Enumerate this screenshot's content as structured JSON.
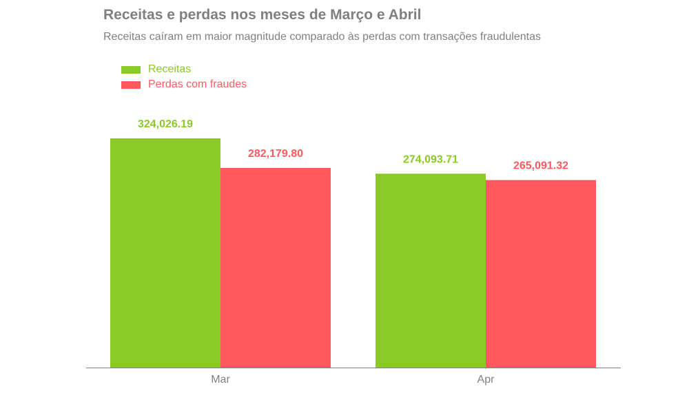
{
  "chart_data": {
    "type": "bar",
    "title": "Receitas e perdas nos meses de Março e Abril",
    "subtitle": "Receitas caíram em maior magnitude comparado às perdas com transações fraudulentas",
    "categories": [
      "Mar",
      "Apr"
    ],
    "series": [
      {
        "name": "Receitas",
        "color": "#8ac926",
        "values": [
          324026.19,
          274093.71
        ],
        "labels": [
          "324,026.19",
          "274,093.71"
        ]
      },
      {
        "name": "Perdas com fraudes",
        "color": "#ff595e",
        "values": [
          282179.8,
          265091.32
        ],
        "labels": [
          "282,179.80",
          "265,091.32"
        ]
      }
    ],
    "ylim": [
      0,
      350000
    ],
    "grid": false,
    "legend_position": "top-left",
    "axis_color": "#7f7f7f"
  }
}
